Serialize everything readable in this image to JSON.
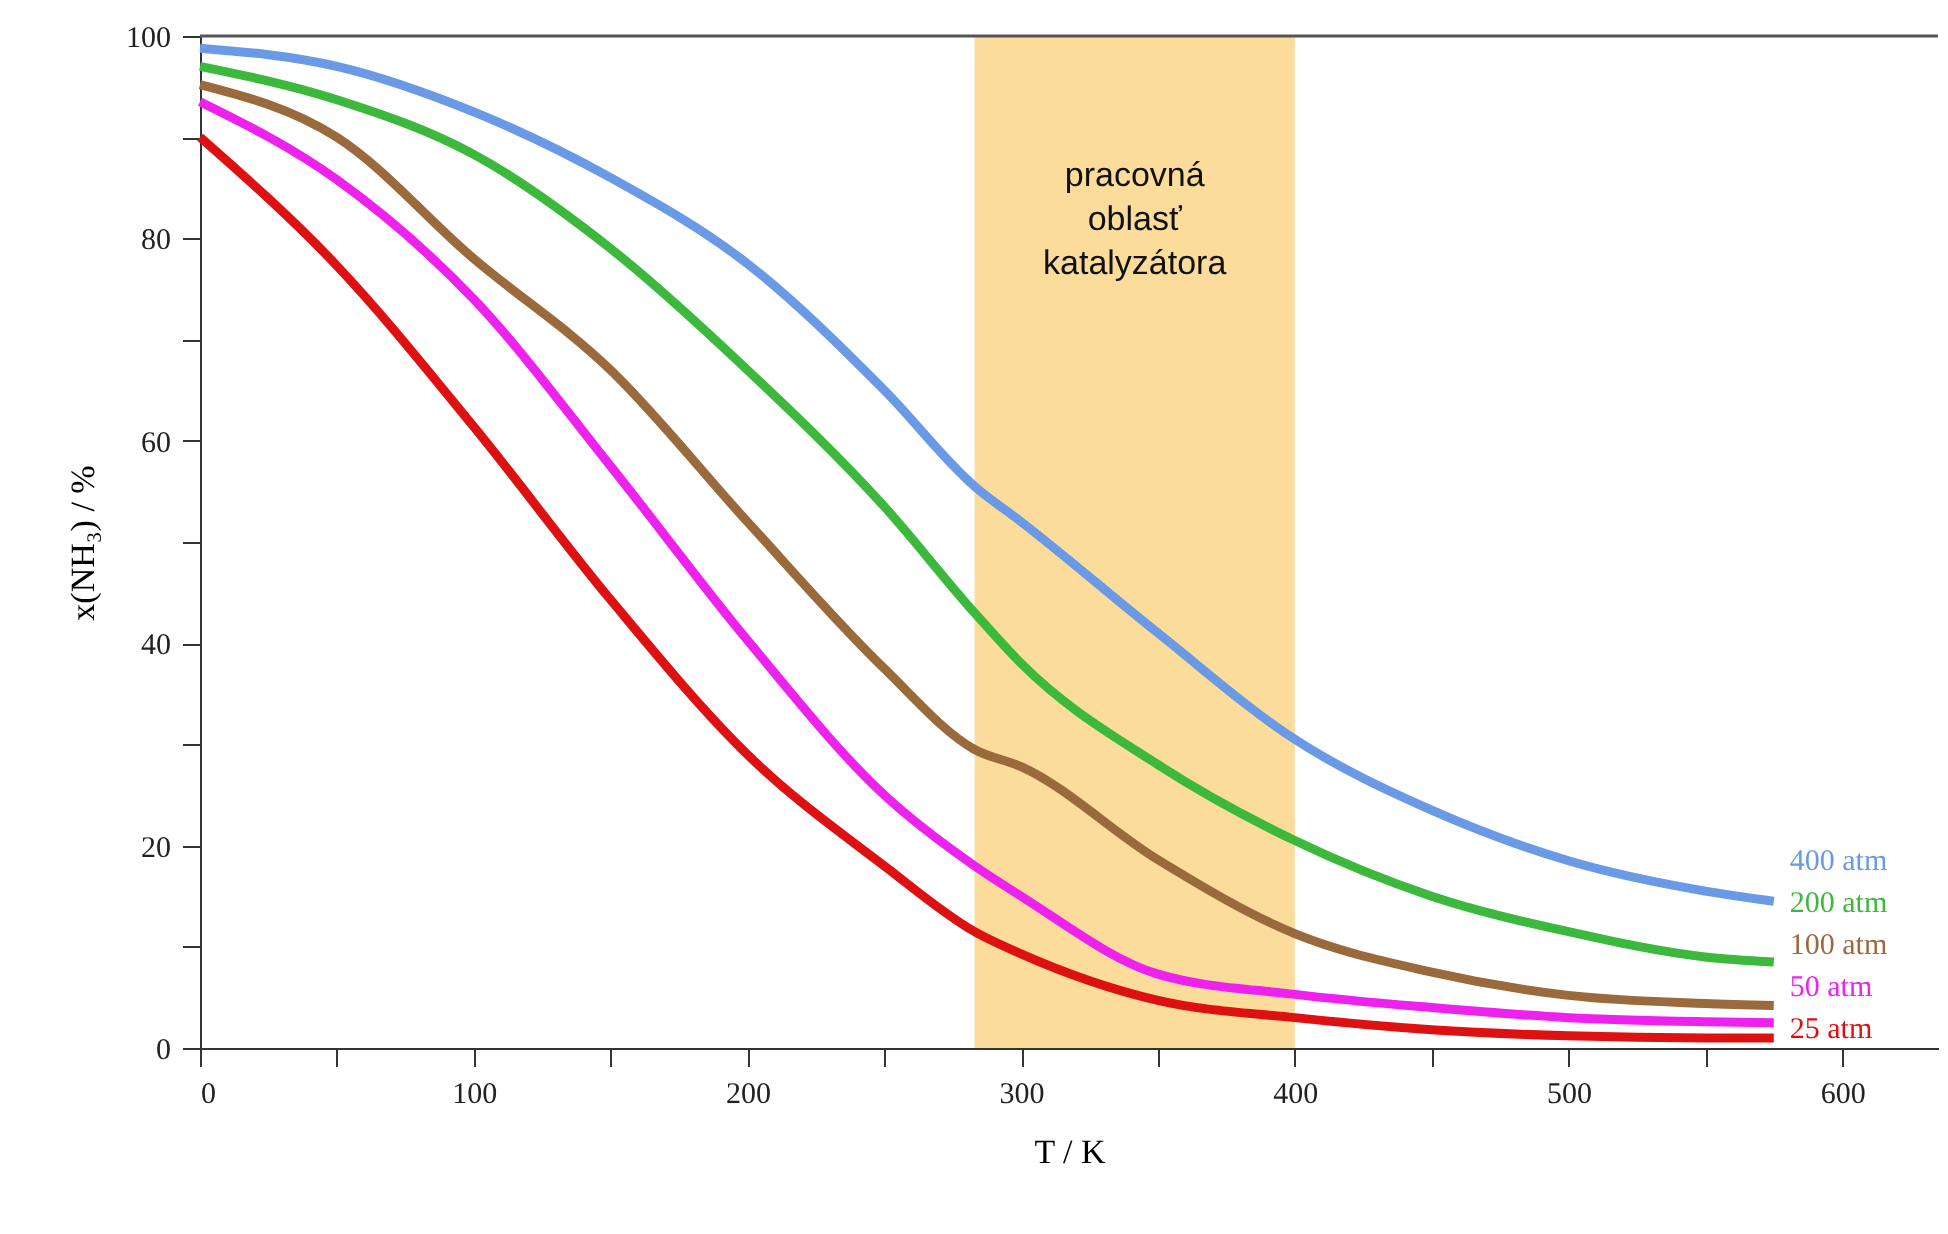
{
  "chart_data": {
    "type": "line",
    "xlabel": "T / K",
    "ylabel": "x(NH₃) / %",
    "x": [
      0,
      50,
      100,
      150,
      200,
      250,
      283,
      300,
      350,
      400,
      450,
      500,
      550,
      575
    ],
    "series": [
      {
        "name": "400 atm",
        "color": "#6a9ae6",
        "values": [
          98.8,
          97,
          92.5,
          86,
          77.5,
          65,
          55.5,
          52,
          41,
          30.5,
          23.5,
          18.5,
          15.5,
          14.5
        ]
      },
      {
        "name": "200 atm",
        "color": "#3cb93c",
        "values": [
          97,
          93.7,
          88.3,
          79,
          67,
          53.5,
          43,
          38,
          28,
          20.5,
          15,
          11.5,
          9,
          8.5
        ]
      },
      {
        "name": "100 atm",
        "color": "#9a6a3c",
        "values": [
          95.2,
          90,
          78,
          67,
          52,
          37.5,
          29.5,
          27.8,
          18.6,
          11.3,
          7.5,
          5.2,
          4.4,
          4.2
        ]
      },
      {
        "name": "50 atm",
        "color": "#ee22ee",
        "values": [
          93.5,
          85.8,
          74,
          57.5,
          40.3,
          25,
          18,
          15,
          7.3,
          5.3,
          4,
          3,
          2.6,
          2.5
        ]
      },
      {
        "name": "25 atm",
        "color": "#dd1111",
        "values": [
          90,
          77.3,
          61.4,
          44.3,
          29,
          18,
          11.5,
          9.3,
          4.7,
          3,
          1.8,
          1.2,
          1,
          1
        ]
      }
    ],
    "bands": [
      {
        "axis": "x",
        "from": 283,
        "to": 400,
        "label": "pracovná\noblasť\nkatalyzátora",
        "color": "#fbdc9a"
      }
    ],
    "xlim": [
      0,
      635
    ],
    "ylim": [
      0,
      100
    ],
    "xticks": [
      0,
      {
        "value": 50,
        "label": null
      },
      100,
      {
        "value": 150,
        "label": null
      },
      200,
      {
        "value": 250,
        "label": null
      },
      300,
      {
        "value": 350,
        "label": null
      },
      400,
      {
        "value": 450,
        "label": null
      },
      500,
      {
        "value": 550,
        "label": null
      },
      600
    ],
    "yticks": [
      0,
      {
        "value": 10,
        "label": null
      },
      20,
      {
        "value": 30,
        "label": null
      },
      40,
      {
        "value": 50,
        "label": null
      },
      60,
      {
        "value": 70,
        "label": null
      },
      80,
      {
        "value": 90,
        "label": null
      },
      100
    ],
    "grid": false,
    "legend": false,
    "marker": "none",
    "line_style": "solid"
  }
}
